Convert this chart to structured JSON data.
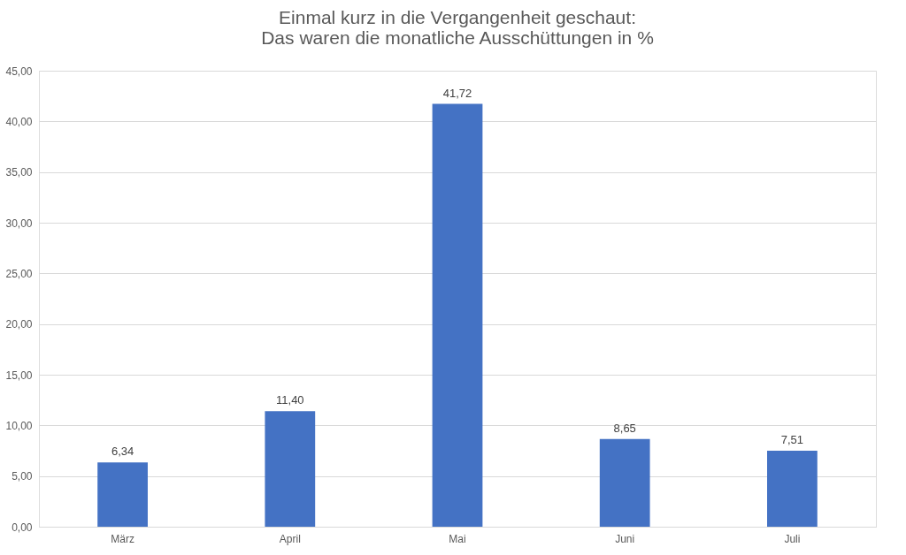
{
  "chart_data": {
    "type": "bar",
    "title": [
      "Einmal kurz in die Vergangenheit geschaut:",
      "Das waren die monatliche Ausschüttungen in %"
    ],
    "categories": [
      "März",
      "April",
      "Mai",
      "Juni",
      "Juli"
    ],
    "values": [
      6.34,
      11.4,
      41.72,
      8.65,
      7.51
    ],
    "value_labels": [
      "6,34",
      "11,40",
      "41,72",
      "8,65",
      "7,51"
    ],
    "color": "#4472c4",
    "ylim": [
      0,
      45
    ],
    "yticks": [
      {
        "value": 0,
        "label": "0,00"
      },
      {
        "value": 5,
        "label": "5,00"
      },
      {
        "value": 10,
        "label": "10,00"
      },
      {
        "value": 15,
        "label": "15,00"
      },
      {
        "value": 20,
        "label": "20,00"
      },
      {
        "value": 25,
        "label": "25,00"
      },
      {
        "value": 30,
        "label": "30,00"
      },
      {
        "value": 35,
        "label": "35,00"
      },
      {
        "value": 40,
        "label": "40,00"
      },
      {
        "value": 45,
        "label": "45,00"
      }
    ],
    "grid": "y"
  }
}
